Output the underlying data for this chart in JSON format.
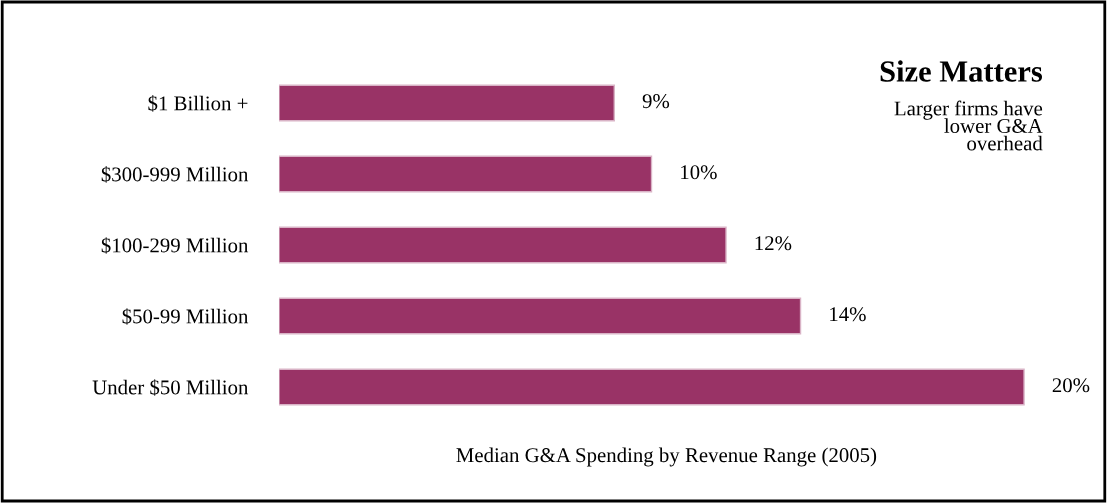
{
  "chart_data": {
    "type": "bar",
    "orientation": "horizontal",
    "title": "Size Matters",
    "subtitle": "Larger firms have\nlower G&A\noverhead",
    "xlabel": "Median G&A Spending by Revenue Range (2005)",
    "categories": [
      "$1 Billion +",
      "$300-999 Million",
      "$100-299 Million",
      "$50-99 Million",
      "Under $50 Million"
    ],
    "values": [
      9,
      10,
      12,
      14,
      20
    ],
    "value_labels": [
      "9%",
      "10%",
      "12%",
      "14%",
      "20%"
    ],
    "color": "#993366",
    "grid": false,
    "legend": false
  }
}
